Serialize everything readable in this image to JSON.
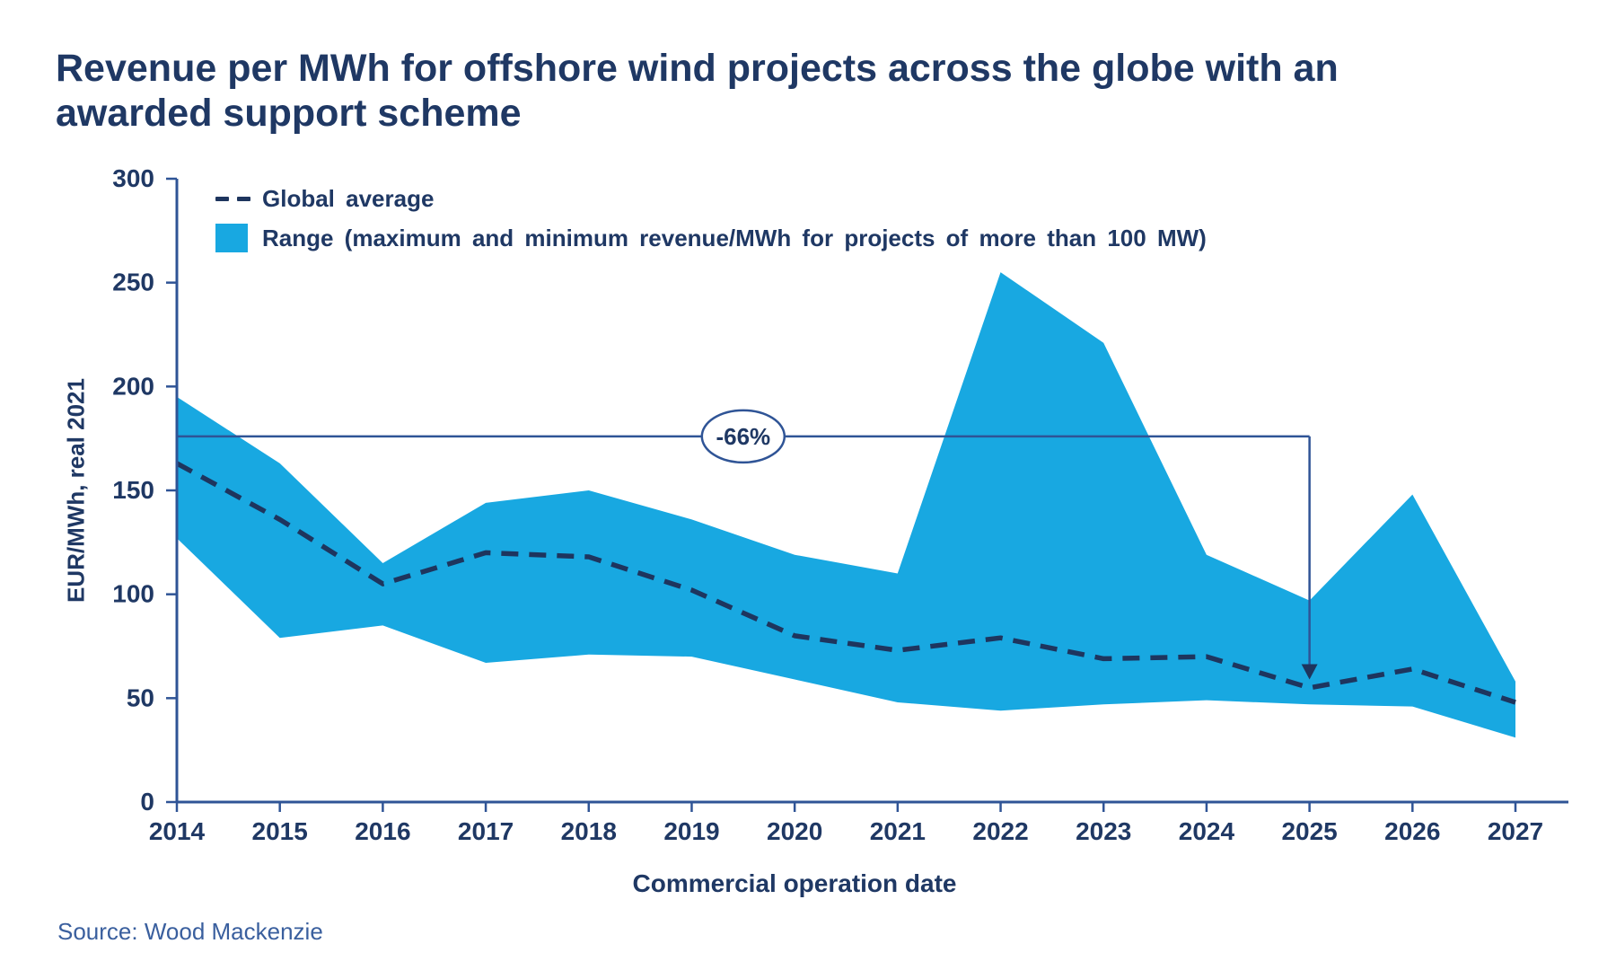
{
  "title": "Revenue per MWh for offshore wind projects across the globe with an awarded support scheme",
  "legend": {
    "average_label": "Global average",
    "range_label": "Range (maximum and minimum revenue/MWh for projects of more than 100 MW)"
  },
  "source": "Source: Wood Mackenzie",
  "colors": {
    "navy": "#1f3864",
    "band": "#18a8e1",
    "axis": "#2f5496",
    "dash": "#1e355e",
    "source_text": "#3a5f9e",
    "background": "#ffffff"
  },
  "chart_data": {
    "type": "area",
    "title": "Revenue per MWh for offshore wind projects across the globe with an awarded support scheme",
    "xlabel": "Commercial operation date",
    "ylabel": "EUR/MWh, real 2021",
    "ylim": [
      0,
      300
    ],
    "yticks": [
      0,
      50,
      100,
      150,
      200,
      250,
      300
    ],
    "grid": false,
    "legend_position": "top-left",
    "categories": [
      "2014",
      "2015",
      "2016",
      "2017",
      "2018",
      "2019",
      "2020",
      "2021",
      "2022",
      "2023",
      "2024",
      "2025",
      "2026",
      "2027"
    ],
    "series": [
      {
        "name": "Global average",
        "style": "dashed-line",
        "values": [
          163,
          136,
          105,
          120,
          118,
          102,
          80,
          73,
          79,
          69,
          70,
          55,
          64,
          48
        ]
      },
      {
        "name": "Range maximum",
        "style": "area-top",
        "values": [
          195,
          163,
          115,
          144,
          150,
          136,
          119,
          110,
          255,
          221,
          119,
          97,
          148,
          58
        ]
      },
      {
        "name": "Range minimum",
        "style": "area-bottom",
        "values": [
          127,
          79,
          85,
          67,
          71,
          70,
          59,
          48,
          44,
          47,
          49,
          47,
          46,
          31
        ]
      }
    ],
    "annotation": {
      "label": "-66%",
      "ref_value": 176,
      "start_category": "2014",
      "end_category": "2025",
      "arrow_tip_value": 59
    }
  }
}
